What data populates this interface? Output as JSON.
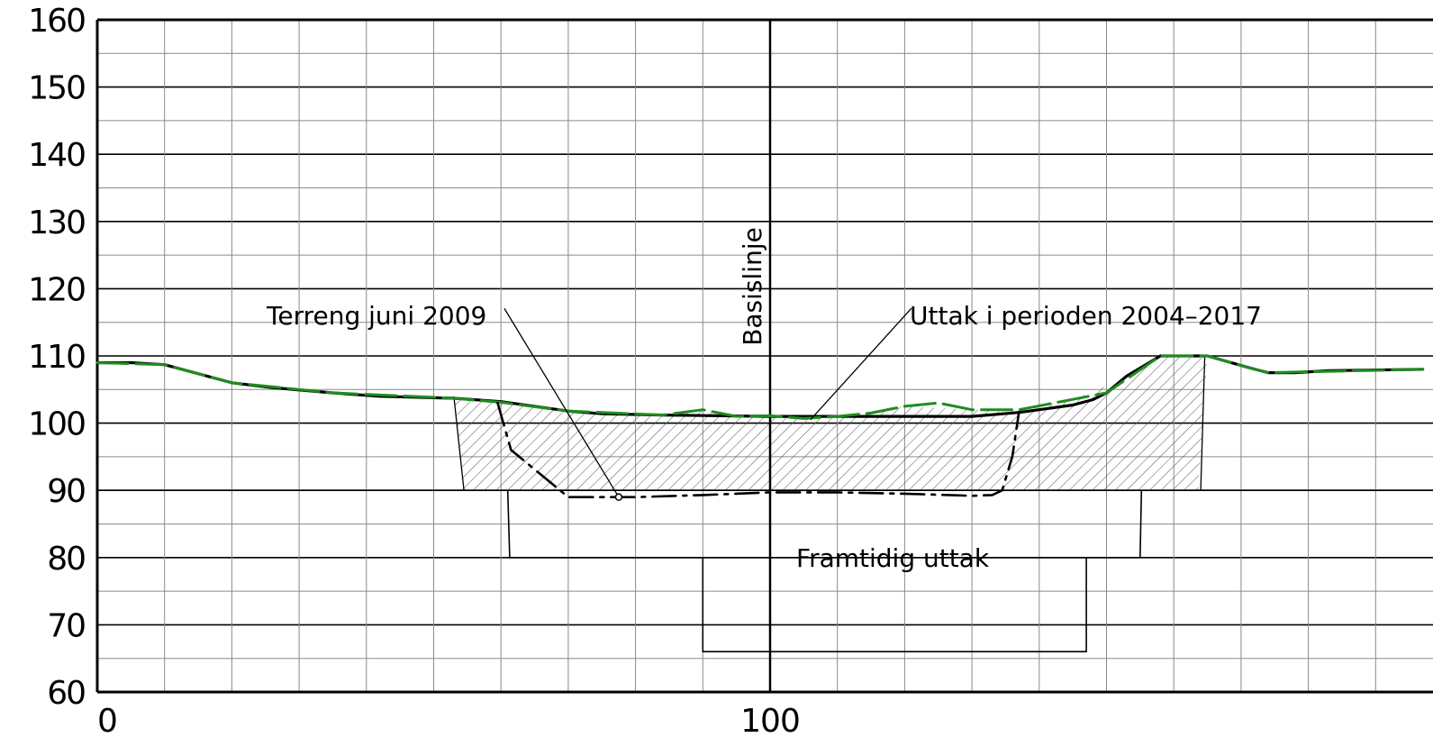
{
  "chart_data": {
    "type": "line",
    "y_ticks": [
      "160",
      "150",
      "140",
      "130",
      "120",
      "110",
      "100",
      "90",
      "80",
      "70",
      "60"
    ],
    "x_ticks": [
      "0",
      "100"
    ],
    "ylim": [
      60,
      160
    ],
    "xlim": [
      0,
      197
    ],
    "grid": true,
    "baseline": {
      "label": "Basislinje",
      "x": 100
    },
    "annotations": {
      "terrain": "Terreng juni 2009",
      "extraction": "Uttak i perioden 2004–2017",
      "future": "Framtidig uttak"
    },
    "series": [
      {
        "key": "terrain_2009",
        "color": "#000000",
        "x": [
          0,
          5,
          10,
          20,
          26,
          35,
          42,
          53,
          60,
          65,
          70,
          75,
          84,
          100,
          110,
          120,
          130,
          137,
          140,
          145,
          148,
          150,
          153,
          158,
          165,
          171,
          174,
          178,
          183,
          197
        ],
        "y": [
          109,
          109,
          108.7,
          106,
          105.3,
          104.5,
          104,
          103.7,
          103.2,
          102.5,
          101.8,
          101.4,
          101.2,
          101,
          101,
          101,
          101,
          101.6,
          102,
          102.7,
          103.5,
          104.5,
          107,
          110,
          110,
          108.3,
          107.5,
          107.5,
          107.8,
          108
        ]
      },
      {
        "key": "surface_2017",
        "color": "#1e8c1e",
        "x": [
          0,
          10,
          20,
          35,
          53,
          60,
          70,
          84,
          90,
          95,
          100,
          105,
          110,
          115,
          120,
          125,
          130,
          137,
          150,
          158,
          165,
          171,
          174,
          197
        ],
        "y": [
          109,
          108.7,
          106,
          104.5,
          103.7,
          103.1,
          101.8,
          101.2,
          102,
          101,
          101.1,
          100.7,
          101,
          101.5,
          102.5,
          103,
          102,
          102,
          104.5,
          110,
          110,
          108.3,
          107.5,
          108
        ]
      },
      {
        "key": "extraction_bottom",
        "color": "#000000",
        "dash": "dash-dot",
        "x": [
          59.5,
          61.5,
          70,
          80,
          90,
          100,
          110,
          120,
          130,
          133,
          134.5,
          136,
          137
        ],
        "y": [
          103,
          96,
          89,
          89,
          89.3,
          89.7,
          89.7,
          89.5,
          89.2,
          89.3,
          90,
          95,
          101.7
        ]
      }
    ],
    "hatched_region": {
      "x": [
        53,
        54.3,
        163.6,
        165,
        158,
        148,
        137,
        130,
        120,
        110,
        100,
        95,
        90,
        84,
        70,
        60,
        53
      ],
      "y": [
        104,
        90,
        90,
        110,
        110,
        104.5,
        101.6,
        102,
        102.5,
        101,
        101.2,
        101,
        102,
        101.2,
        101.8,
        103.2,
        104
      ]
    },
    "slope_lines": [
      {
        "x": [
          53,
          54.5
        ],
        "y": [
          104,
          90
        ]
      },
      {
        "x": [
          164.6,
          164
        ],
        "y": [
          110,
          90
        ]
      }
    ],
    "future_extraction": {
      "upper": {
        "x": [
          61,
          61.3,
          90,
          90,
          146.8,
          146.8,
          155,
          155.2
        ],
        "y": [
          90,
          80,
          80,
          80,
          80,
          80,
          80,
          90
        ]
      },
      "lower": {
        "x": [
          90,
          90,
          147,
          147
        ],
        "y": [
          80,
          66,
          66,
          80
        ]
      }
    },
    "leaders": {
      "terrain": {
        "from": [
          60.5,
          116
        ],
        "to": [
          77.5,
          89
        ]
      },
      "extraction": {
        "from": [
          121,
          116
        ],
        "to": [
          106,
          100.5
        ]
      }
    }
  }
}
